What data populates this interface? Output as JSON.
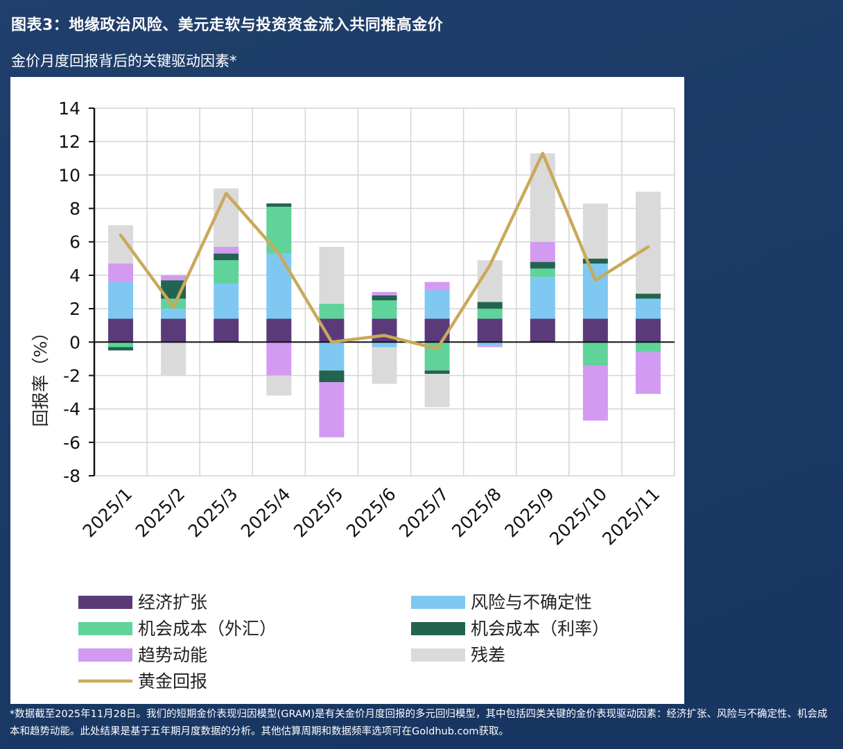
{
  "header": {
    "title": "图表3：地缘政治风险、美元走软与投资资金流入共同推高金价",
    "subtitle": "金价月度回报背后的关键驱动因素*"
  },
  "footnote": "*数据截至2025年11月28日。我们的短期金价表现归因模型(GRAM)是有关金价月度回报的多元回归模型，其中包括四类关键的金价表现驱动因素：经济扩张、风险与不确定性、机会成本和趋势动能。此处结果是基于五年期月度数据的分析。其他估算周期和数据频率选项可在Goldhub.com获取。",
  "chart_data": {
    "type": "bar",
    "stacked": true,
    "ylabel": "回报率（%）",
    "ylim": [
      -8,
      14
    ],
    "yticks": [
      14,
      12,
      10,
      8,
      6,
      4,
      2,
      0,
      -2,
      -4,
      -6,
      -8
    ],
    "grid": true,
    "legend_position": "bottom",
    "categories": [
      "2025/1",
      "2025/2",
      "2025/3",
      "2025/4",
      "2025/5",
      "2025/6",
      "2025/7",
      "2025/8",
      "2025/9",
      "2025/10",
      "2025/11"
    ],
    "series": [
      {
        "name": "经济扩张",
        "color": "#5b3a7a",
        "values": [
          1.4,
          1.4,
          1.4,
          1.4,
          1.4,
          1.4,
          1.4,
          1.4,
          1.4,
          1.4,
          1.4
        ]
      },
      {
        "name": "风险与不确定性",
        "color": "#7ec8f2",
        "values": [
          2.2,
          0.6,
          2.1,
          3.9,
          -1.7,
          -0.3,
          1.7,
          -0.2,
          2.5,
          3.3,
          1.2
        ]
      },
      {
        "name": "机会成本（外汇）",
        "color": "#5fd39a",
        "values": [
          -0.3,
          0.6,
          1.4,
          2.8,
          0.9,
          1.1,
          -1.7,
          0.6,
          0.5,
          -1.4,
          -0.6
        ]
      },
      {
        "name": "机会成本（利率）",
        "color": "#22644f",
        "values": [
          -0.2,
          1.1,
          0.4,
          0.2,
          -0.7,
          0.3,
          -0.2,
          0.4,
          0.4,
          0.3,
          0.3
        ]
      },
      {
        "name": "趋势动能",
        "color": "#d39af2",
        "values": [
          1.1,
          0.3,
          0.4,
          -2.0,
          -3.3,
          0.2,
          0.5,
          -0.1,
          1.2,
          -3.3,
          -2.5
        ]
      },
      {
        "name": "残差",
        "color": "#dadada",
        "values": [
          2.3,
          -2.0,
          3.5,
          -1.2,
          3.4,
          -2.2,
          -2.0,
          2.5,
          5.3,
          3.3,
          6.1
        ]
      }
    ],
    "line": {
      "name": "黄金回报",
      "color": "#c9a95a",
      "values": [
        6.4,
        2.1,
        8.9,
        5.3,
        0.0,
        0.4,
        -0.4,
        4.6,
        11.3,
        3.7,
        5.7
      ]
    }
  }
}
